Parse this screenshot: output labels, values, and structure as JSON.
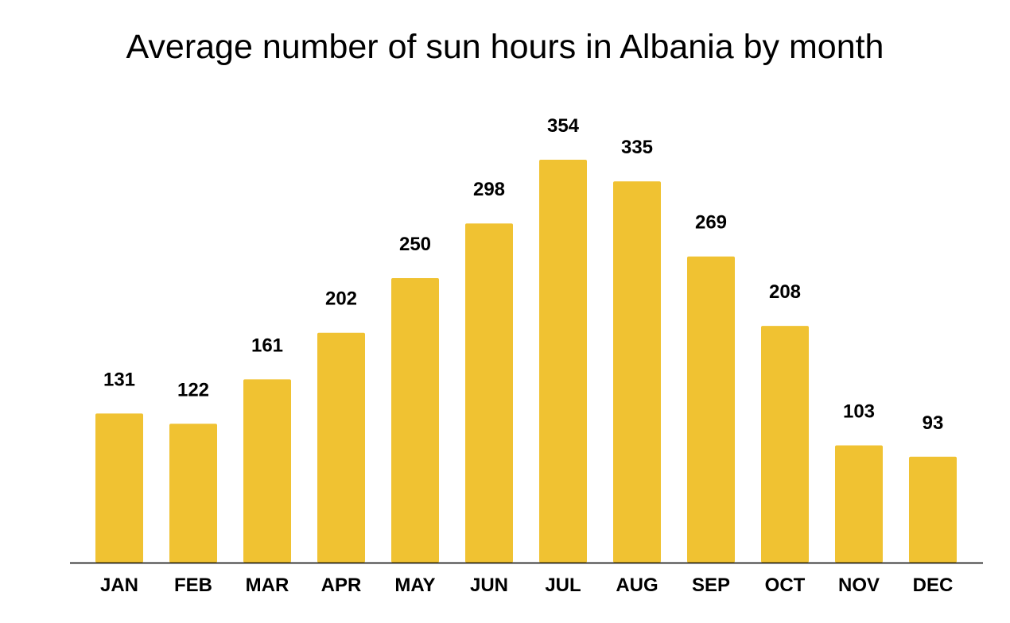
{
  "chart_data": {
    "type": "bar",
    "title": "Average number of sun hours in Albania by month",
    "xlabel": "",
    "ylabel": "",
    "categories": [
      "JAN",
      "FEB",
      "MAR",
      "APR",
      "MAY",
      "JUN",
      "JUL",
      "AUG",
      "SEP",
      "OCT",
      "NOV",
      "DEC"
    ],
    "values": [
      131,
      122,
      161,
      202,
      250,
      298,
      354,
      335,
      269,
      208,
      103,
      93
    ],
    "ylim": [
      0,
      354
    ],
    "grid": false,
    "legend": "none",
    "data_labels": true
  },
  "colors": {
    "bar": "#F0C232",
    "axis": "#000000",
    "text": "#000000",
    "background": "#FFFFFF"
  }
}
